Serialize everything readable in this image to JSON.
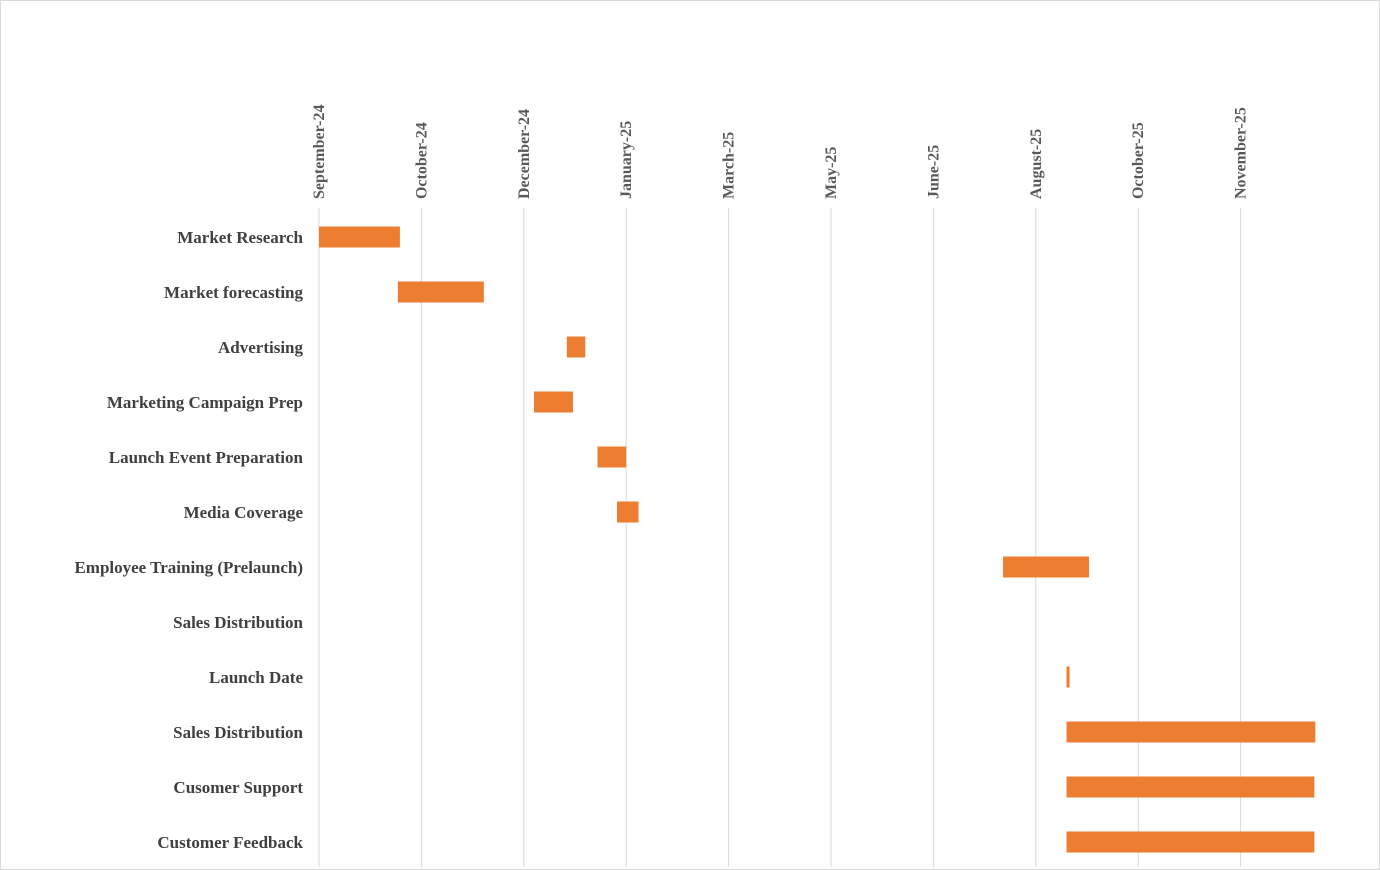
{
  "chart_data": {
    "type": "bar",
    "subtype": "gantt",
    "title": "",
    "xlabel": "",
    "ylabel": "",
    "grid": true,
    "bar_color": "#ED7D31",
    "xlim": [
      0,
      9.7
    ],
    "x_ticks": [
      {
        "label": "September-24",
        "value": 0
      },
      {
        "label": "October-24",
        "value": 1
      },
      {
        "label": "December-24",
        "value": 2
      },
      {
        "label": "January-25",
        "value": 3
      },
      {
        "label": "March-25",
        "value": 4
      },
      {
        "label": "May-25",
        "value": 5
      },
      {
        "label": "June-25",
        "value": 6
      },
      {
        "label": "August-25",
        "value": 7
      },
      {
        "label": "October-25",
        "value": 8
      },
      {
        "label": "November-25",
        "value": 9
      }
    ],
    "tasks": [
      {
        "name": "Market Research",
        "start": 0.0,
        "end": 0.79
      },
      {
        "name": "Market forecasting",
        "start": 0.77,
        "end": 1.61
      },
      {
        "name": "Advertising",
        "start": 2.42,
        "end": 2.6
      },
      {
        "name": "Marketing Campaign Prep",
        "start": 2.1,
        "end": 2.48
      },
      {
        "name": "Launch Event Preparation",
        "start": 2.72,
        "end": 3.0
      },
      {
        "name": "Media Coverage",
        "start": 2.91,
        "end": 3.12
      },
      {
        "name": "Employee Training (Prelaunch)",
        "start": 6.68,
        "end": 7.52
      },
      {
        "name": "Sales Distribution",
        "start": null,
        "end": null
      },
      {
        "name": "Launch Date",
        "start": 7.3,
        "end": 7.33
      },
      {
        "name": "Sales Distribution",
        "start": 7.3,
        "end": 9.73
      },
      {
        "name": "Cusomer Support",
        "start": 7.3,
        "end": 9.72
      },
      {
        "name": "Customer Feedback",
        "start": 7.3,
        "end": 9.72
      }
    ]
  }
}
